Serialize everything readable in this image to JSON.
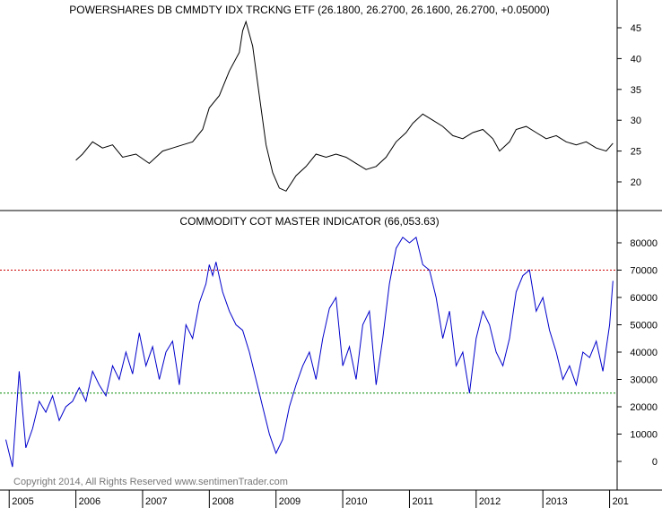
{
  "chart_data": [
    {
      "type": "line",
      "title": "POWERSHARES DB CMMDTY IDX TRCKNG ETF (26.1800, 26.2700, 26.1600, 26.2700, +0.05000)",
      "ylim": [
        16,
        47
      ],
      "yticks": [
        "20",
        "25",
        "30",
        "35",
        "40",
        "45"
      ],
      "color": "#000000",
      "series": [
        {
          "x": [
            2006.0,
            2006.1,
            2006.25,
            2006.4,
            2006.55,
            2006.7,
            2006.9,
            2007.1,
            2007.3,
            2007.45,
            2007.6,
            2007.75,
            2007.9,
            2008.0,
            2008.15,
            2008.3,
            2008.45,
            2008.5,
            2008.55,
            2008.65,
            2008.75,
            2008.85,
            2008.95,
            2009.05,
            2009.15,
            2009.3,
            2009.45,
            2009.6,
            2009.75,
            2009.9,
            2010.05,
            2010.2,
            2010.35,
            2010.5,
            2010.65,
            2010.8,
            2010.95,
            2011.05,
            2011.2,
            2011.35,
            2011.5,
            2011.65,
            2011.8,
            2011.95,
            2012.1,
            2012.25,
            2012.35,
            2012.5,
            2012.6,
            2012.75,
            2012.9,
            2013.05,
            2013.2,
            2013.35,
            2013.5,
            2013.65,
            2013.8,
            2013.95,
            2014.05
          ],
          "y": [
            23.5,
            24.5,
            26.5,
            25.5,
            26.0,
            24.0,
            24.5,
            23.0,
            25.0,
            25.5,
            26.0,
            26.5,
            28.5,
            32.0,
            34.0,
            38.0,
            41.0,
            44.5,
            46.0,
            42.0,
            34.0,
            26.0,
            21.5,
            19.0,
            18.5,
            21.0,
            22.5,
            24.5,
            24.0,
            24.5,
            24.0,
            23.0,
            22.0,
            22.5,
            24.0,
            26.5,
            28.0,
            29.5,
            31.0,
            30.0,
            29.0,
            27.5,
            27.0,
            28.0,
            28.5,
            27.0,
            25.0,
            26.5,
            28.5,
            29.0,
            28.0,
            27.0,
            27.5,
            26.5,
            26.0,
            26.5,
            25.5,
            25.0,
            26.27
          ]
        }
      ]
    },
    {
      "type": "line",
      "title": "COMMODITY COT MASTER INDICATOR (66,053.63)",
      "ylim": [
        -8000,
        86000
      ],
      "yticks": [
        "80000",
        "70000",
        "60000",
        "50000",
        "40000",
        "30000",
        "20000",
        "10000",
        "0"
      ],
      "reference_lines": [
        {
          "value": 70000,
          "color": "#cc0000",
          "style": "dashed"
        },
        {
          "value": 25000,
          "color": "#008800",
          "style": "dashed"
        }
      ],
      "color": "#0000cc",
      "series": [
        {
          "x": [
            2004.95,
            2005.05,
            2005.15,
            2005.25,
            2005.35,
            2005.45,
            2005.55,
            2005.65,
            2005.75,
            2005.85,
            2005.95,
            2006.05,
            2006.15,
            2006.25,
            2006.35,
            2006.45,
            2006.55,
            2006.65,
            2006.75,
            2006.85,
            2006.95,
            2007.05,
            2007.15,
            2007.25,
            2007.35,
            2007.45,
            2007.55,
            2007.65,
            2007.75,
            2007.85,
            2007.95,
            2008.0,
            2008.05,
            2008.1,
            2008.2,
            2008.3,
            2008.4,
            2008.5,
            2008.6,
            2008.7,
            2008.8,
            2008.9,
            2009.0,
            2009.1,
            2009.2,
            2009.3,
            2009.4,
            2009.5,
            2009.6,
            2009.7,
            2009.8,
            2009.9,
            2010.0,
            2010.1,
            2010.2,
            2010.3,
            2010.4,
            2010.5,
            2010.6,
            2010.7,
            2010.8,
            2010.9,
            2011.0,
            2011.1,
            2011.2,
            2011.3,
            2011.4,
            2011.5,
            2011.6,
            2011.7,
            2011.8,
            2011.9,
            2012.0,
            2012.1,
            2012.2,
            2012.3,
            2012.4,
            2012.5,
            2012.6,
            2012.7,
            2012.8,
            2012.9,
            2013.0,
            2013.1,
            2013.2,
            2013.3,
            2013.4,
            2013.5,
            2013.6,
            2013.7,
            2013.8,
            2013.9,
            2014.0,
            2014.05
          ],
          "y": [
            8000,
            -2000,
            33000,
            5000,
            12000,
            22000,
            18000,
            24000,
            15000,
            20000,
            22000,
            27000,
            22000,
            33000,
            28000,
            24000,
            35000,
            30000,
            40000,
            32000,
            47000,
            35000,
            42000,
            30000,
            40000,
            44000,
            28000,
            50000,
            45000,
            58000,
            65000,
            72000,
            68000,
            73000,
            62000,
            55000,
            50000,
            48000,
            40000,
            30000,
            20000,
            10000,
            3000,
            8000,
            20000,
            28000,
            35000,
            40000,
            30000,
            45000,
            56000,
            60000,
            35000,
            42000,
            30000,
            50000,
            55000,
            28000,
            45000,
            65000,
            78000,
            82000,
            80000,
            82000,
            72000,
            70000,
            60000,
            45000,
            55000,
            35000,
            40000,
            25000,
            45000,
            55000,
            50000,
            40000,
            35000,
            45000,
            62000,
            68000,
            70000,
            55000,
            60000,
            48000,
            40000,
            30000,
            35000,
            28000,
            40000,
            38000,
            44000,
            33000,
            50000,
            66053.63
          ]
        }
      ]
    }
  ],
  "x_axis": {
    "labels": [
      "2005",
      "2006",
      "2007",
      "2008",
      "2009",
      "2010",
      "2011",
      "2012",
      "2013",
      "201"
    ]
  },
  "footer": {
    "copyright": "Copyright 2014, All Rights Reserved  www.sentimenTrader.com"
  }
}
